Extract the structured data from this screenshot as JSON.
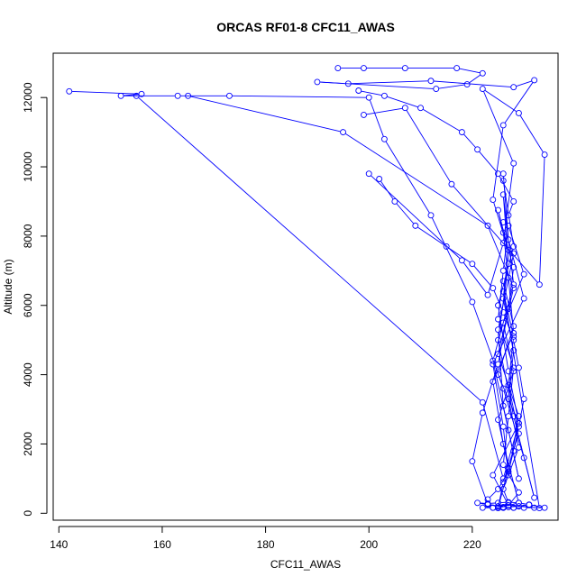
{
  "chart_data": {
    "type": "line",
    "title": "ORCAS RF01-8 CFC11_AWAS",
    "xlabel": "CFC11_AWAS",
    "ylabel": "Altitude (m)",
    "xlim": [
      138.9,
      236.6
    ],
    "ylim": [
      -200,
      13280
    ],
    "xticks": [
      140,
      160,
      180,
      200,
      220
    ],
    "yticks": [
      0,
      2000,
      4000,
      6000,
      8000,
      10000,
      12000
    ],
    "grid": false,
    "legend": "none",
    "color": "#0000ff",
    "marker": "open-circle",
    "series": [
      {
        "x": [
          194,
          199,
          207,
          217,
          222,
          219,
          213,
          190,
          196,
          212,
          228,
          232,
          226,
          224,
          228,
          227,
          225,
          222,
          220,
          223,
          226,
          225,
          229,
          226,
          224,
          228,
          227,
          226,
          225,
          227,
          226,
          228,
          227,
          229,
          226,
          227,
          225,
          227,
          225,
          228,
          226,
          230,
          227,
          226,
          225,
          228,
          227,
          226,
          229,
          227,
          225,
          226,
          229,
          227,
          228,
          226,
          233,
          227,
          224,
          229,
          225,
          228,
          226
        ],
        "y": [
          12850,
          12850,
          12850,
          12850,
          12700,
          12380,
          12250,
          12450,
          12400,
          12480,
          12300,
          12500,
          11200,
          9050,
          7100,
          5900,
          4300,
          2900,
          1500,
          260,
          180,
          160,
          300,
          2000,
          3800,
          5200,
          6800,
          8100,
          8750,
          7600,
          6200,
          4700,
          3300,
          1900,
          700,
          300,
          150,
          1300,
          2700,
          4100,
          5500,
          6900,
          8300,
          7000,
          5600,
          4200,
          2800,
          1400,
          600,
          220,
          160,
          900,
          2300,
          3700,
          5100,
          6400,
          150,
          230,
          1100,
          2600,
          4000,
          5400,
          6700
        ]
      },
      {
        "x": [
          142,
          156,
          152,
          163,
          173,
          200,
          203,
          212,
          220,
          226,
          230,
          232,
          228,
          225,
          227,
          226,
          228,
          224,
          227,
          229,
          226,
          225,
          228
        ],
        "y": [
          12180,
          12100,
          12050,
          12050,
          12050,
          12000,
          10800,
          8600,
          6100,
          3600,
          1600,
          450,
          2800,
          5000,
          7200,
          9200,
          6600,
          4400,
          2400,
          1000,
          3100,
          5300,
          7500
        ]
      },
      {
        "x": [
          165,
          195,
          223,
          228,
          225,
          229,
          227,
          226,
          224,
          230,
          227,
          226
        ],
        "y": [
          12050,
          11000,
          8300,
          6500,
          4600,
          2800,
          1100,
          2500,
          4300,
          6200,
          7900,
          9800
        ]
      },
      {
        "x": [
          155,
          222,
          226,
          229,
          227,
          225,
          228,
          226
        ],
        "y": [
          12050,
          3200,
          1000,
          2600,
          4100,
          6000,
          7700,
          9600
        ]
      },
      {
        "x": [
          199,
          207,
          216,
          233,
          234,
          229,
          222,
          228,
          226,
          223,
          218,
          200
        ],
        "y": [
          11500,
          11700,
          9500,
          6600,
          10350,
          11550,
          12250,
          10100,
          7800,
          6300,
          7300,
          9800
        ]
      },
      {
        "x": [
          202,
          205,
          209,
          215,
          220,
          224,
          226,
          228,
          229,
          230,
          229,
          228,
          227,
          225,
          223,
          224,
          226,
          228
        ],
        "y": [
          9650,
          9000,
          8300,
          7700,
          7200,
          6500,
          5800,
          5000,
          4200,
          3300,
          2500,
          1800,
          1200,
          700,
          400,
          160,
          160,
          160
        ]
      },
      {
        "x": [
          222,
          224,
          226,
          228,
          230,
          232,
          234,
          231,
          229,
          227,
          225,
          223,
          221,
          223,
          225,
          227,
          229,
          231
        ],
        "y": [
          160,
          160,
          160,
          160,
          160,
          160,
          160,
          250,
          300,
          320,
          300,
          280,
          300,
          250,
          200,
          180,
          200,
          240
        ]
      },
      {
        "x": [
          198,
          203,
          210,
          218,
          221,
          225,
          228,
          227,
          226
        ],
        "y": [
          12200,
          12050,
          11700,
          11000,
          10500,
          9800,
          9000,
          8600,
          8400
        ]
      }
    ]
  }
}
